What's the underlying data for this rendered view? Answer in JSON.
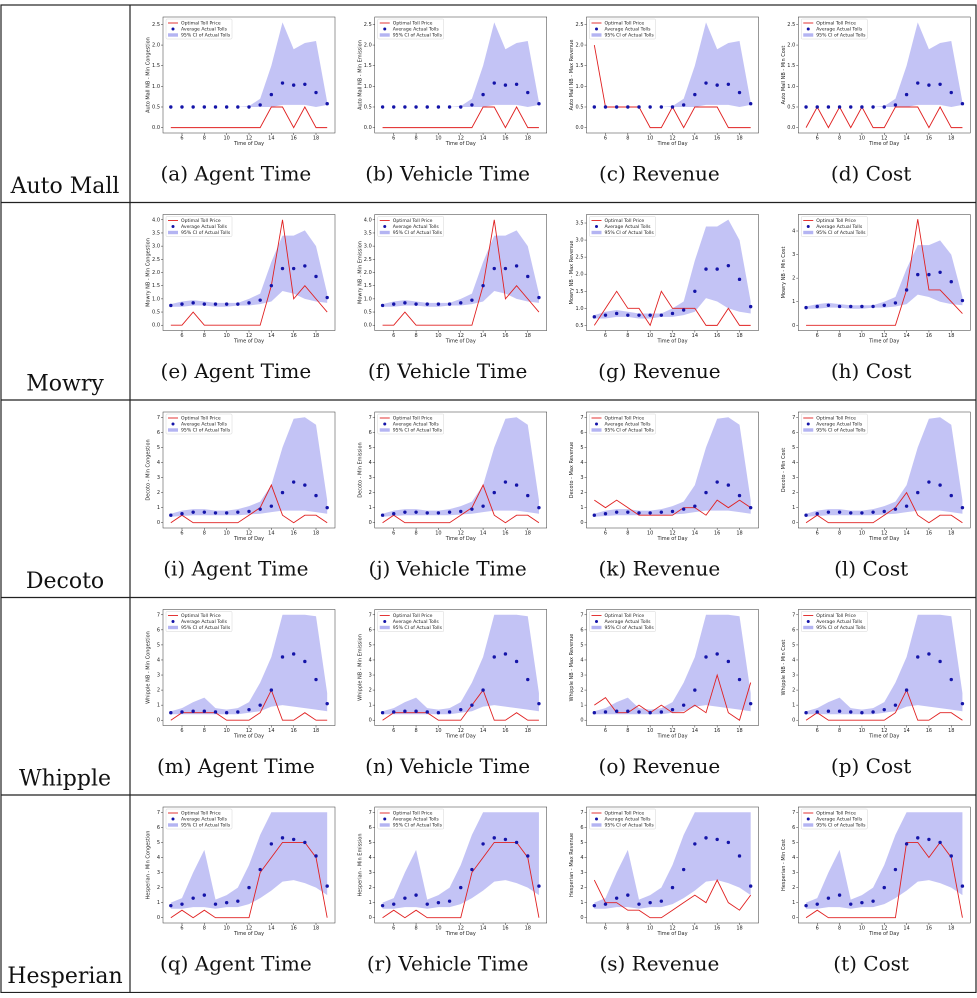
{
  "x": [
    5,
    6,
    7,
    8,
    9,
    10,
    11,
    12,
    13,
    14,
    15,
    16,
    17,
    18,
    19
  ],
  "xlim": [
    4.3,
    19.7
  ],
  "xticks": [
    6,
    8,
    10,
    12,
    14,
    16,
    18
  ],
  "xlabel": "Time of Day",
  "legend": [
    "Optimal Toll Price",
    "Average Actual Tolls",
    "95% CI of Actual Tolls"
  ],
  "colors": {
    "toll": "#e02020",
    "avg": "#1414a8",
    "band": "#b4b4f2"
  },
  "rows": [
    {
      "label": "Auto Mall",
      "avg": [
        0.5,
        0.5,
        0.5,
        0.5,
        0.5,
        0.5,
        0.5,
        0.5,
        0.55,
        0.8,
        1.08,
        1.03,
        1.05,
        0.85,
        0.58
      ],
      "ci_low": [
        0.5,
        0.5,
        0.5,
        0.5,
        0.5,
        0.5,
        0.5,
        0.5,
        0.5,
        0.5,
        0.55,
        0.55,
        0.55,
        0.5,
        0.55
      ],
      "ci_high": [
        0.5,
        0.5,
        0.5,
        0.5,
        0.5,
        0.5,
        0.5,
        0.52,
        0.7,
        1.5,
        2.55,
        1.9,
        2.05,
        2.1,
        0.62
      ],
      "panels": [
        {
          "caption": "(a) Agent Time",
          "ylabel": "Auto Mall NB - Min Congestion",
          "ylim": [
            -0.13,
            2.68
          ],
          "yticks": [
            {
              "value": 0,
              "label": "0.0"
            },
            0.5,
            {
              "value": 1,
              "label": "1.0"
            },
            1.5,
            {
              "value": 2,
              "label": "2.0"
            },
            2.5
          ],
          "toll": [
            0,
            0,
            0,
            0,
            0,
            0,
            0,
            0,
            0,
            0.5,
            0.5,
            0,
            0.5,
            0,
            0
          ]
        },
        {
          "caption": "(b) Vehicle Time",
          "ylabel": "Auto Mall NB - Min Emission",
          "ylim": [
            -0.13,
            2.68
          ],
          "yticks": [
            {
              "value": 0,
              "label": "0.0"
            },
            0.5,
            {
              "value": 1,
              "label": "1.0"
            },
            1.5,
            {
              "value": 2,
              "label": "2.0"
            },
            2.5
          ],
          "toll": [
            0,
            0,
            0,
            0,
            0,
            0,
            0,
            0,
            0,
            0.5,
            0.5,
            0,
            0.5,
            0,
            0
          ]
        },
        {
          "caption": "(c) Revenue",
          "ylabel": "Auto Mall NB - Max Revenue",
          "ylim": [
            -0.13,
            2.68
          ],
          "yticks": [
            {
              "value": 0,
              "label": "0.0"
            },
            0.5,
            {
              "value": 1,
              "label": "1.0"
            },
            1.5,
            {
              "value": 2,
              "label": "2.0"
            },
            2.5
          ],
          "toll": [
            2,
            0.5,
            0.5,
            0.5,
            0.5,
            0,
            0,
            0.5,
            0,
            0.5,
            0.5,
            0.5,
            0,
            0,
            0
          ]
        },
        {
          "caption": "(d) Cost",
          "ylabel": "Auto Mall NB - Min Cost",
          "ylim": [
            -0.13,
            2.68
          ],
          "yticks": [
            {
              "value": 0,
              "label": "0.0"
            },
            0.5,
            {
              "value": 1,
              "label": "1.0"
            },
            1.5,
            {
              "value": 2,
              "label": "2.0"
            },
            2.5
          ],
          "toll": [
            0,
            0.5,
            0,
            0.5,
            0,
            0.5,
            0,
            0,
            0.5,
            0.5,
            0.5,
            0,
            0.5,
            0,
            0
          ]
        }
      ]
    },
    {
      "label": "Mowry",
      "avg": [
        0.75,
        0.8,
        0.85,
        0.8,
        0.8,
        0.8,
        0.8,
        0.85,
        0.95,
        1.5,
        2.15,
        2.15,
        2.25,
        1.85,
        1.05
      ],
      "ci_low": [
        0.7,
        0.7,
        0.75,
        0.75,
        0.7,
        0.7,
        0.75,
        0.75,
        0.8,
        0.9,
        1.3,
        1.2,
        1.0,
        0.9,
        0.85
      ],
      "ci_high": [
        0.8,
        0.9,
        0.95,
        0.9,
        0.85,
        0.85,
        0.85,
        1.0,
        1.2,
        2.4,
        3.4,
        3.4,
        3.6,
        3.0,
        1.2
      ],
      "panels": [
        {
          "caption": "(e) Agent Time",
          "ylabel": "Mowry NB - Min Congestion",
          "ylim": [
            -0.2,
            4.2
          ],
          "yticks": [
            {
              "value": 0,
              "label": "0.0"
            },
            0.5,
            {
              "value": 1,
              "label": "1.0"
            },
            1.5,
            {
              "value": 2,
              "label": "2.0"
            },
            2.5,
            {
              "value": 3,
              "label": "3.0"
            },
            3.5,
            {
              "value": 4,
              "label": "4.0"
            }
          ],
          "toll": [
            0,
            0,
            0.5,
            0,
            0,
            0,
            0,
            0,
            0,
            1.5,
            4,
            1,
            1.5,
            1,
            0.5
          ]
        },
        {
          "caption": "(f) Vehicle Time",
          "ylabel": "Mowry NB - Min Emission",
          "ylim": [
            -0.2,
            4.2
          ],
          "yticks": [
            {
              "value": 0,
              "label": "0.0"
            },
            0.5,
            {
              "value": 1,
              "label": "1.0"
            },
            1.5,
            {
              "value": 2,
              "label": "2.0"
            },
            2.5,
            {
              "value": 3,
              "label": "3.0"
            },
            3.5,
            {
              "value": 4,
              "label": "4.0"
            }
          ],
          "toll": [
            0,
            0,
            0.5,
            0,
            0,
            0,
            0,
            0,
            0,
            1.5,
            4,
            1,
            1.5,
            1,
            0.5
          ]
        },
        {
          "caption": "(g) Revenue",
          "ylabel": "Mowry NB - Max Revenue",
          "ylim": [
            0.35,
            3.75
          ],
          "yticks": [
            0.5,
            {
              "value": 1,
              "label": "1.0"
            },
            1.5,
            {
              "value": 2,
              "label": "2.0"
            },
            2.5,
            {
              "value": 3,
              "label": "3.0"
            },
            3.5
          ],
          "toll": [
            0.5,
            1,
            1.5,
            1,
            1,
            0.5,
            1.5,
            1,
            1,
            1,
            0.5,
            0.5,
            1,
            0.5,
            0.5
          ]
        },
        {
          "caption": "(h) Cost",
          "ylabel": "Mowry NB - Min Cost",
          "ylim": [
            -0.22,
            4.7
          ],
          "yticks": [
            0,
            1,
            2,
            3,
            4
          ],
          "toll": [
            0,
            0,
            0,
            0,
            0,
            0,
            0,
            0,
            0,
            1.5,
            4.5,
            1.5,
            1.5,
            1,
            0.5
          ]
        }
      ]
    },
    {
      "label": "Decoto",
      "avg": [
        0.5,
        0.6,
        0.7,
        0.7,
        0.65,
        0.65,
        0.7,
        0.75,
        0.9,
        1.1,
        2,
        2.7,
        2.5,
        1.8,
        1
      ],
      "ci_low": [
        0.4,
        0.45,
        0.5,
        0.5,
        0.5,
        0.5,
        0.5,
        0.55,
        0.6,
        0.7,
        0.8,
        0.8,
        0.8,
        0.7,
        0.6
      ],
      "ci_high": [
        0.6,
        0.8,
        0.9,
        0.9,
        0.8,
        0.8,
        0.9,
        1.1,
        1.4,
        2.5,
        5,
        6.9,
        7,
        6.5,
        1.5
      ],
      "panels": [
        {
          "caption": "(i) Agent Time",
          "ylabel": "Decoto - Min Congestion",
          "ylim": [
            -0.35,
            7.35
          ],
          "yticks": [
            0,
            1,
            2,
            3,
            4,
            5,
            6,
            7
          ],
          "toll": [
            0,
            0.5,
            0,
            0,
            0,
            0,
            0,
            0.5,
            1,
            2.5,
            0.5,
            0,
            0.5,
            0.5,
            0
          ]
        },
        {
          "caption": "(j) Vehicle Time",
          "ylabel": "Decoto - Min Emission",
          "ylim": [
            -0.35,
            7.35
          ],
          "yticks": [
            0,
            1,
            2,
            3,
            4,
            5,
            6,
            7
          ],
          "toll": [
            0,
            0.5,
            0,
            0,
            0,
            0,
            0,
            0.5,
            1,
            2.5,
            0.5,
            0,
            0.5,
            0.5,
            0
          ]
        },
        {
          "caption": "(k) Revenue",
          "ylabel": "Decoto - Max Revenue",
          "ylim": [
            -0.35,
            7.35
          ],
          "yticks": [
            0,
            1,
            2,
            3,
            4,
            5,
            6,
            7
          ],
          "toll": [
            1.5,
            1,
            1.5,
            1,
            0.5,
            0.5,
            0.5,
            0.5,
            1,
            1,
            0.5,
            1.5,
            1,
            1.5,
            1
          ]
        },
        {
          "caption": "(l) Cost",
          "ylabel": "Decoto - Min Cost",
          "ylim": [
            -0.35,
            7.35
          ],
          "yticks": [
            0,
            1,
            2,
            3,
            4,
            5,
            6,
            7
          ],
          "toll": [
            0,
            0.5,
            0,
            0,
            0,
            0,
            0,
            0.5,
            1,
            2,
            0.5,
            0,
            0.5,
            0.5,
            0
          ]
        }
      ]
    },
    {
      "label": "Whipple",
      "avg": [
        0.5,
        0.55,
        0.6,
        0.6,
        0.55,
        0.5,
        0.55,
        0.7,
        1,
        2,
        4.2,
        4.4,
        3.9,
        2.7,
        1.1
      ],
      "ci_low": [
        0.4,
        0.4,
        0.4,
        0.4,
        0.4,
        0.4,
        0.4,
        0.5,
        0.6,
        0.9,
        1,
        0.9,
        0.8,
        0.7,
        0.6
      ],
      "ci_high": [
        0.6,
        0.8,
        1.2,
        1.5,
        0.8,
        0.7,
        0.8,
        1.2,
        2.5,
        4.2,
        7,
        7,
        7,
        6.9,
        1.8
      ],
      "panels": [
        {
          "caption": "(m) Agent Time",
          "ylabel": "Whipple NB - Min Congestion",
          "ylim": [
            -0.35,
            7.35
          ],
          "yticks": [
            0,
            1,
            2,
            3,
            4,
            5,
            6,
            7
          ],
          "toll": [
            0,
            0.5,
            0.5,
            0.5,
            0.5,
            0,
            0,
            0,
            0.5,
            2,
            0,
            0,
            0.5,
            0,
            0
          ]
        },
        {
          "caption": "(n) Vehicle Time",
          "ylabel": "Whipple NB - Min Emission",
          "ylim": [
            -0.35,
            7.35
          ],
          "yticks": [
            0,
            1,
            2,
            3,
            4,
            5,
            6,
            7
          ],
          "toll": [
            0,
            0.5,
            0.5,
            0.5,
            0.5,
            0,
            0,
            0,
            1,
            2,
            0,
            0,
            0.5,
            0,
            0
          ]
        },
        {
          "caption": "(o) Revenue",
          "ylabel": "Whipple NB - Max Revenue",
          "ylim": [
            -0.35,
            7.35
          ],
          "yticks": [
            0,
            1,
            2,
            3,
            4,
            5,
            6,
            7
          ],
          "toll": [
            1,
            1.5,
            0.5,
            0.5,
            1,
            0.5,
            1,
            0.5,
            0.5,
            1,
            0.5,
            3,
            0.5,
            0,
            2.5
          ]
        },
        {
          "caption": "(p) Cost",
          "ylabel": "Whipple NB - Min Cost",
          "ylim": [
            -0.35,
            7.35
          ],
          "yticks": [
            0,
            1,
            2,
            3,
            4,
            5,
            6,
            7
          ],
          "toll": [
            0,
            0.5,
            0,
            0,
            0,
            0,
            0,
            0,
            0.5,
            2,
            0,
            0,
            0.5,
            0.5,
            0
          ]
        }
      ]
    },
    {
      "label": "Hesperian",
      "avg": [
        0.8,
        0.9,
        1.3,
        1.5,
        0.9,
        1,
        1.1,
        2,
        3.2,
        4.9,
        5.3,
        5.2,
        5,
        4.1,
        2.1
      ],
      "ci_low": [
        0.6,
        0.6,
        0.7,
        0.7,
        0.6,
        0.7,
        0.7,
        0.9,
        1.3,
        1.8,
        2.4,
        2.5,
        2.3,
        2,
        1.5
      ],
      "ci_high": [
        1,
        1.3,
        3,
        4.5,
        1.2,
        1.5,
        2,
        3.5,
        5.5,
        7,
        7,
        7,
        7,
        7,
        7
      ],
      "panels": [
        {
          "caption": "(q) Agent Time",
          "ylabel": "Hesperian - Min Congestion",
          "ylim": [
            -0.35,
            7.35
          ],
          "yticks": [
            0,
            1,
            2,
            3,
            4,
            5,
            6,
            7
          ],
          "toll": [
            0,
            0.5,
            0,
            0.5,
            0,
            0,
            0,
            0,
            3,
            4,
            5,
            5,
            5,
            4,
            0
          ]
        },
        {
          "caption": "(r) Vehicle Time",
          "ylabel": "Hesperian - Min Emission",
          "ylim": [
            -0.35,
            7.35
          ],
          "yticks": [
            0,
            1,
            2,
            3,
            4,
            5,
            6,
            7
          ],
          "toll": [
            0,
            0.5,
            0,
            0.5,
            0,
            0,
            0,
            0,
            3,
            4,
            5,
            5,
            5,
            4,
            0
          ]
        },
        {
          "caption": "(s) Revenue",
          "ylabel": "Hesperian - Max Revenue",
          "ylim": [
            -0.35,
            7.35
          ],
          "yticks": [
            0,
            1,
            2,
            3,
            4,
            5,
            6,
            7
          ],
          "toll": [
            2.5,
            1,
            1,
            0.5,
            0.5,
            0,
            0,
            0.5,
            1,
            1.5,
            1,
            2.5,
            1,
            0.5,
            1.5
          ]
        },
        {
          "caption": "(t) Cost",
          "ylabel": "Hesperian - Min Cost",
          "ylim": [
            -0.35,
            7.35
          ],
          "yticks": [
            0,
            1,
            2,
            3,
            4,
            5,
            6,
            7
          ],
          "toll": [
            0,
            0.5,
            0,
            0,
            0,
            0,
            0,
            0,
            0,
            5,
            5,
            4,
            5,
            4,
            0
          ]
        }
      ]
    }
  ]
}
